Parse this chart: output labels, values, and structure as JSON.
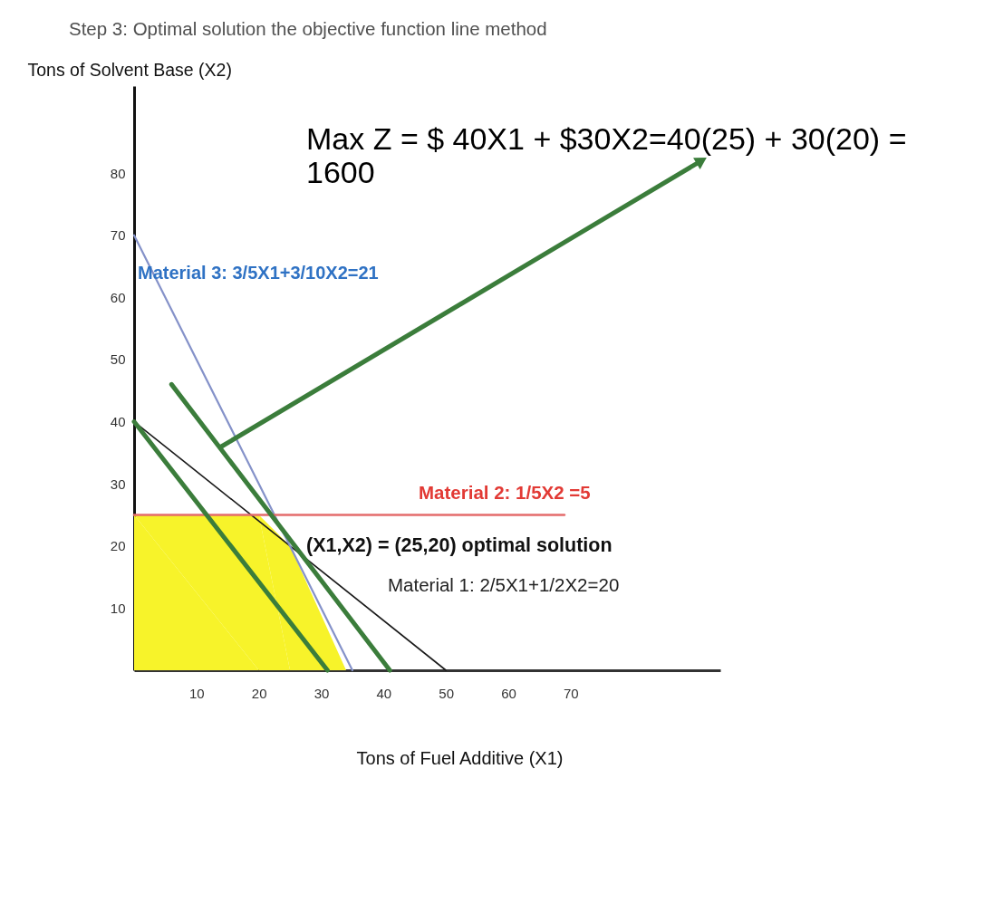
{
  "chart_data": {
    "type": "line",
    "title": "Step 3: Optimal solution the objective function line method",
    "xlabel": "Tons of Fuel Additive (X1)",
    "ylabel": "Tons of Solvent Base (X2)",
    "xlim": [
      0,
      94
    ],
    "ylim": [
      0,
      94
    ],
    "xticks": [
      10,
      20,
      30,
      40,
      50,
      60,
      70
    ],
    "yticks": [
      10,
      20,
      30,
      40,
      50,
      60,
      70,
      80
    ],
    "grid": false,
    "series": [
      {
        "type": "area",
        "color": "#f7f32a",
        "x": [
          0,
          20,
          25,
          34
        ],
        "values": [
          25,
          25,
          20,
          0
        ]
      },
      {
        "color": "#1a1a1a",
        "x": [
          0,
          50
        ],
        "values": [
          40,
          0
        ]
      },
      {
        "color": "#8592c9",
        "x": [
          0,
          35
        ],
        "values": [
          70,
          0
        ]
      },
      {
        "color": "#e46b6b",
        "x": [
          0,
          69
        ],
        "values": [
          25,
          25
        ]
      },
      {
        "color": "#3b7d3b",
        "x": [
          0,
          31
        ],
        "values": [
          40,
          0
        ]
      },
      {
        "color": "#3b7d3b",
        "x": [
          6,
          41
        ],
        "values": [
          46,
          0
        ]
      },
      {
        "color": "#3b7d3b",
        "x": [
          14,
          91
        ],
        "values": [
          36,
          82
        ],
        "marker": "triangle"
      }
    ],
    "annotations": [
      "Max Z = $ 40X1 + $30X2=40(25) + 30(20) = 1600",
      "Material 3: 3/5X1+3/10X2=21",
      "Material 2: 1/5X2 =5",
      {
        "text": "(X1,X2) = (25,20) optimal solution",
        "x": 25,
        "y": 20
      },
      "Material 1: 2/5X1+1/2X2=20"
    ]
  }
}
